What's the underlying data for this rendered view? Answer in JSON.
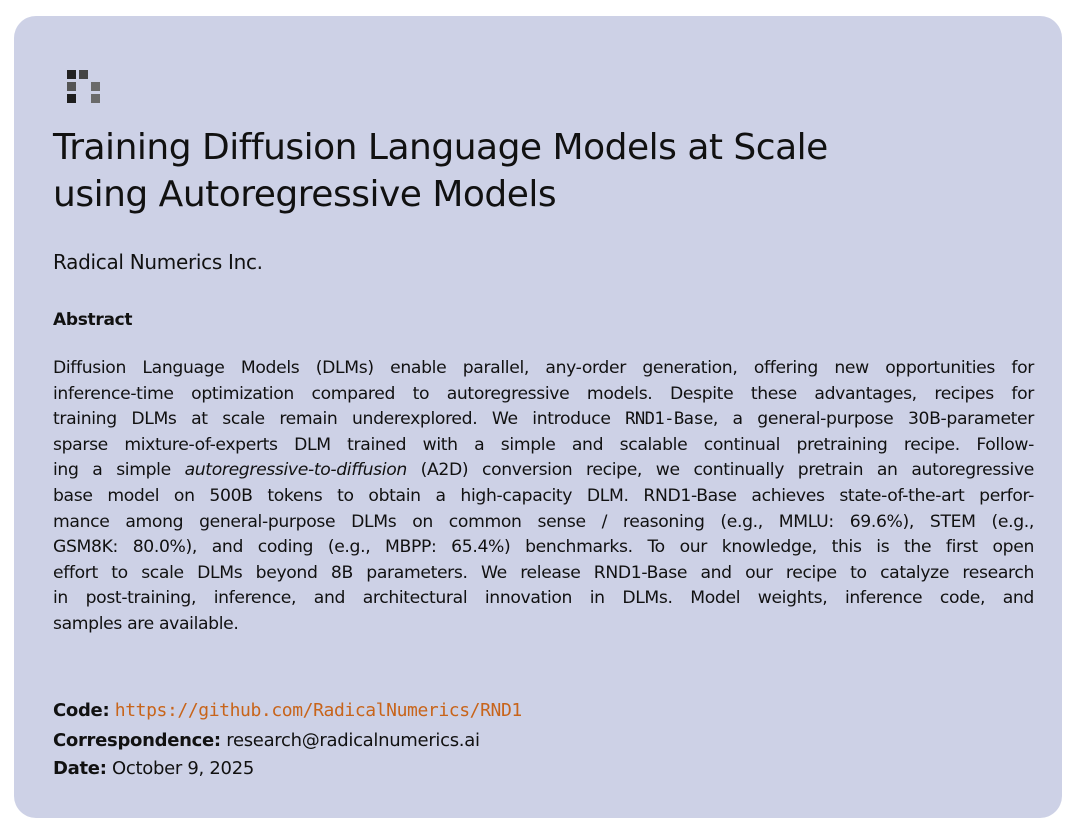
{
  "logo": {
    "icon": "radical-numerics-logo-icon",
    "colors": [
      "#222222",
      "#444444",
      "#555555",
      "#1e1e1e",
      "#6a6a6a"
    ]
  },
  "title_lines": [
    "Training Diffusion Language Models at Scale",
    "using Autoregressive Models"
  ],
  "author": "Radical Numerics Inc.",
  "abstract_heading": "Abstract",
  "abstract_lines": [
    [
      {
        "t": "Diffusion Language Models (DLMs) enable parallel, any-order generation, offering new opportunities for"
      }
    ],
    [
      {
        "t": "inference-time optimization compared to autoregressive models.  Despite these advantages, recipes for"
      }
    ],
    [
      {
        "t": "training DLMs at scale remain underexplored. We introduce "
      },
      {
        "t": "RND1-Base",
        "s": "mono"
      },
      {
        "t": ", a general-purpose 30B-parameter"
      }
    ],
    [
      {
        "t": "sparse mixture-of-experts DLM trained with a simple and scalable continual pretraining recipe.  Follow-"
      }
    ],
    [
      {
        "t": "ing a simple "
      },
      {
        "t": "autoregressive-to-diffusion",
        "s": "it"
      },
      {
        "t": " (A2D) conversion recipe, we continually pretrain an autoregressive"
      }
    ],
    [
      {
        "t": "base model on 500B tokens to obtain a high-capacity DLM. RND1-Base achieves state-of-the-art perfor-"
      }
    ],
    [
      {
        "t": "mance among general-purpose DLMs on common sense / reasoning (e.g., MMLU: 69.6%), STEM (e.g.,"
      }
    ],
    [
      {
        "t": "GSM8K: 80.0%), and coding (e.g., MBPP: 65.4%) benchmarks.  To our knowledge, this is the first open"
      }
    ],
    [
      {
        "t": "effort to scale DLMs beyond 8B parameters.  We release RND1-Base and our recipe to catalyze research"
      }
    ],
    [
      {
        "t": "in post-training, inference, and architectural innovation in DLMs.  Model weights, inference code, and"
      }
    ],
    [
      {
        "t": "samples are available."
      }
    ]
  ],
  "meta": {
    "code_label": "Code:",
    "code_url": "https://github.com/RadicalNumerics/RND1",
    "correspondence_label": "Correspondence:",
    "correspondence_email": "research@radicalnumerics.ai",
    "date_label": "Date:",
    "date_value": "October 9, 2025"
  },
  "colors": {
    "card_background": "#cdd1e6",
    "link": "#c8641a",
    "text": "#111111"
  }
}
